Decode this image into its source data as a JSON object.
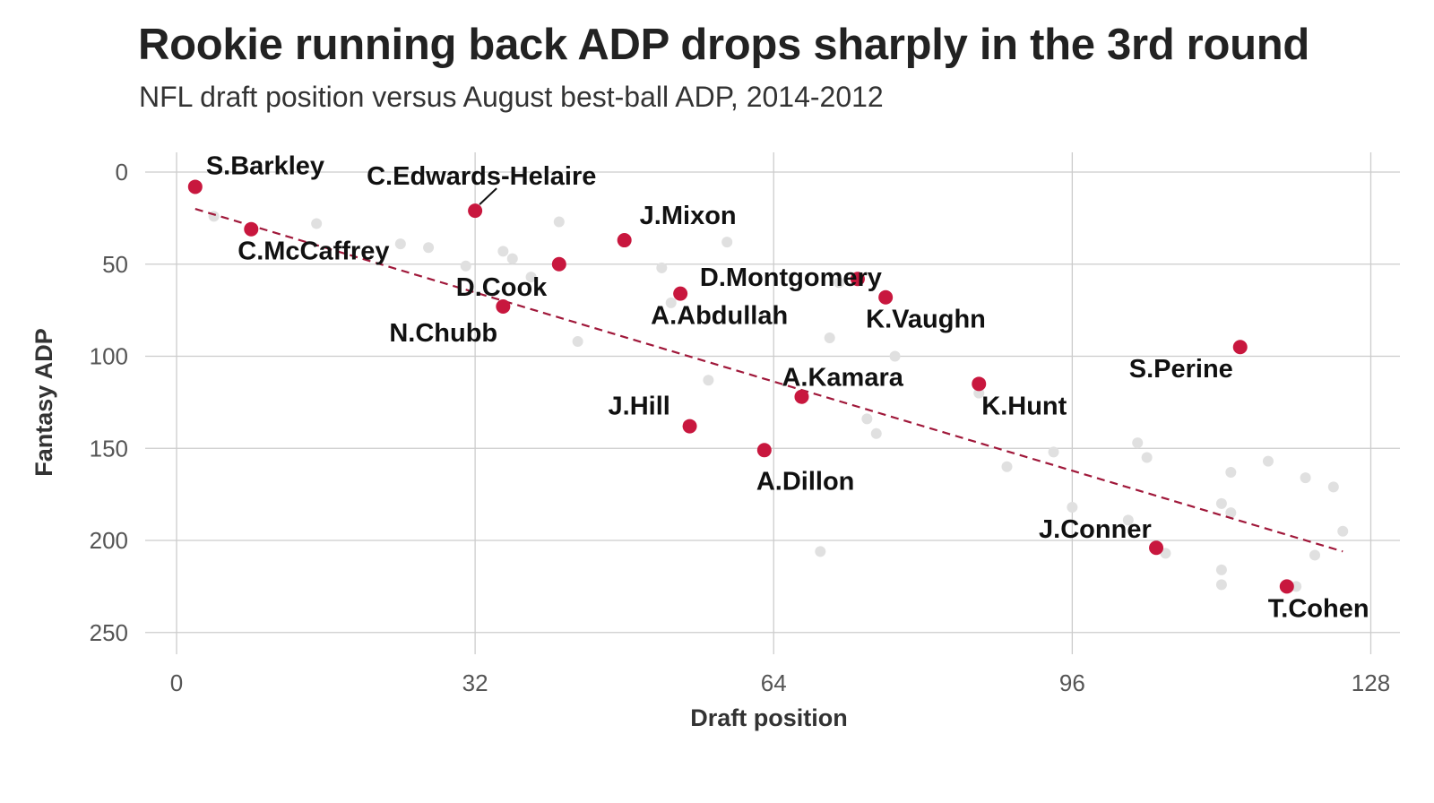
{
  "chart_data": {
    "type": "scatter",
    "title": "Rookie running back ADP drops sharply in the 3rd round",
    "subtitle": "NFL draft position versus August best-ball ADP, 2014-2012",
    "xlabel": "Draft position",
    "ylabel": "Fantasy ADP",
    "xlim": [
      -3,
      131
    ],
    "ylim": [
      0,
      250
    ],
    "y_reversed": true,
    "xticks": [
      0,
      32,
      64,
      96,
      128
    ],
    "yticks": [
      0,
      50,
      100,
      150,
      200,
      250
    ],
    "grid": true,
    "colors": {
      "highlight": "#C8173E",
      "background_points": "#E0E0E0",
      "trend": "#A0183A",
      "grid": "#CCCCCC"
    },
    "trend_line": {
      "style": "dashed",
      "x": [
        2,
        125
      ],
      "y": [
        20,
        206
      ]
    },
    "series": [
      {
        "points": [
          {
            "x": 2,
            "y": 8
          },
          {
            "x": 8,
            "y": 31
          },
          {
            "x": 32,
            "y": 21
          },
          {
            "x": 48,
            "y": 37
          },
          {
            "x": 41,
            "y": 50
          },
          {
            "x": 35,
            "y": 73
          },
          {
            "x": 54,
            "y": 66
          },
          {
            "x": 73,
            "y": 58
          },
          {
            "x": 76,
            "y": 68
          },
          {
            "x": 114,
            "y": 95
          },
          {
            "x": 67,
            "y": 122
          },
          {
            "x": 86,
            "y": 115
          },
          {
            "x": 55,
            "y": 138
          },
          {
            "x": 63,
            "y": 151
          },
          {
            "x": 105,
            "y": 204
          },
          {
            "x": 119,
            "y": 225
          }
        ]
      },
      {
        "points": [
          {
            "x": 4,
            "y": 24
          },
          {
            "x": 15,
            "y": 28
          },
          {
            "x": 24,
            "y": 39
          },
          {
            "x": 27,
            "y": 41
          },
          {
            "x": 31,
            "y": 51
          },
          {
            "x": 35,
            "y": 43
          },
          {
            "x": 36,
            "y": 47
          },
          {
            "x": 38,
            "y": 57
          },
          {
            "x": 41,
            "y": 27
          },
          {
            "x": 43,
            "y": 92
          },
          {
            "x": 52,
            "y": 52
          },
          {
            "x": 53,
            "y": 71
          },
          {
            "x": 57,
            "y": 113
          },
          {
            "x": 59,
            "y": 38
          },
          {
            "x": 69,
            "y": 206
          },
          {
            "x": 70,
            "y": 90
          },
          {
            "x": 71,
            "y": 60
          },
          {
            "x": 74,
            "y": 134
          },
          {
            "x": 75,
            "y": 142
          },
          {
            "x": 77,
            "y": 100
          },
          {
            "x": 86,
            "y": 120
          },
          {
            "x": 89,
            "y": 160
          },
          {
            "x": 94,
            "y": 152
          },
          {
            "x": 96,
            "y": 182
          },
          {
            "x": 102,
            "y": 189
          },
          {
            "x": 103,
            "y": 147
          },
          {
            "x": 104,
            "y": 155
          },
          {
            "x": 106,
            "y": 207
          },
          {
            "x": 112,
            "y": 180
          },
          {
            "x": 112,
            "y": 216
          },
          {
            "x": 112,
            "y": 224
          },
          {
            "x": 113,
            "y": 163
          },
          {
            "x": 113,
            "y": 185
          },
          {
            "x": 117,
            "y": 157
          },
          {
            "x": 120,
            "y": 225
          },
          {
            "x": 121,
            "y": 166
          },
          {
            "x": 122,
            "y": 208
          },
          {
            "x": 124,
            "y": 171
          },
          {
            "x": 125,
            "y": 195
          }
        ]
      }
    ],
    "labels": [
      {
        "text": "S.Barkley",
        "x": 2,
        "y": 8
      },
      {
        "text": "C.McCaffrey",
        "x": 8,
        "y": 31
      },
      {
        "text": "C.Edwards-Helaire",
        "x": 32,
        "y": 21
      },
      {
        "text": "J.Mixon",
        "x": 48,
        "y": 37
      },
      {
        "text": "D.Cook",
        "x": 41,
        "y": 50
      },
      {
        "text": "N.Chubb",
        "x": 35,
        "y": 73
      },
      {
        "text": "A.Abdullah",
        "x": 54,
        "y": 66
      },
      {
        "text": "D.Montgomery",
        "x": 73,
        "y": 58
      },
      {
        "text": "K.Vaughn",
        "x": 76,
        "y": 68
      },
      {
        "text": "S.Perine",
        "x": 114,
        "y": 95
      },
      {
        "text": "A.Kamara",
        "x": 67,
        "y": 122
      },
      {
        "text": "K.Hunt",
        "x": 86,
        "y": 115
      },
      {
        "text": "J.Hill",
        "x": 55,
        "y": 138
      },
      {
        "text": "A.Dillon",
        "x": 63,
        "y": 151
      },
      {
        "text": "J.Conner",
        "x": 105,
        "y": 204
      },
      {
        "text": "T.Cohen",
        "x": 119,
        "y": 225
      }
    ]
  }
}
